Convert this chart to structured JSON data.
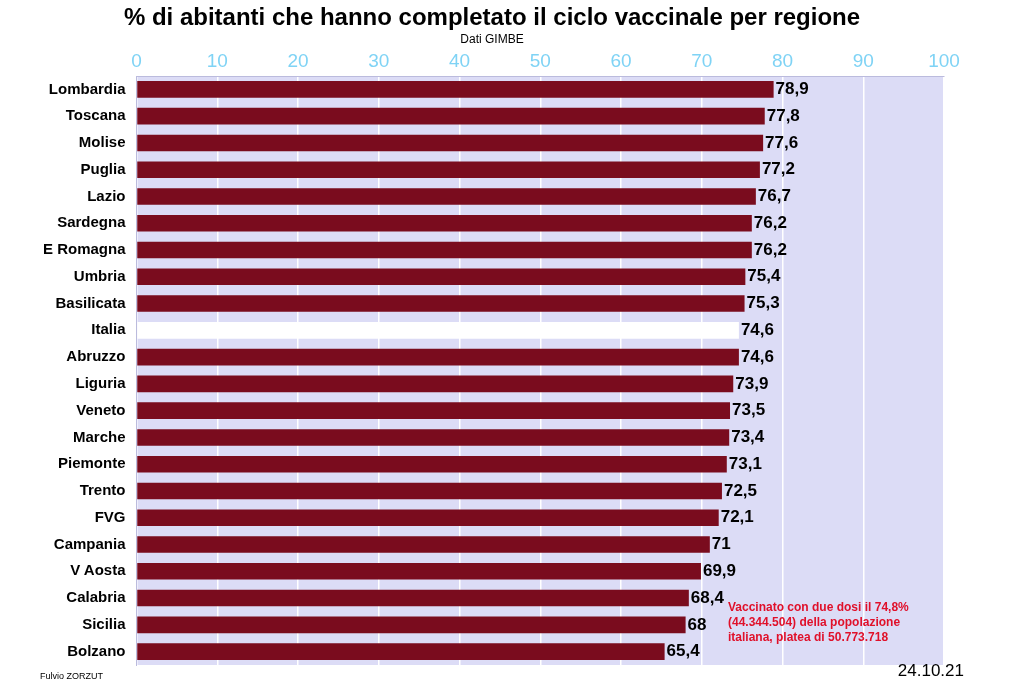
{
  "chart_data": {
    "type": "bar",
    "orientation": "horizontal",
    "title": "% di abitanti che hanno completato il ciclo vaccinale per regione",
    "subtitle": "Dati GIMBE",
    "categories": [
      "Lombardia",
      "Toscana",
      "Molise",
      "Puglia",
      "Lazio",
      "Sardegna",
      "E Romagna",
      "Umbria",
      "Basilicata",
      "Italia",
      "Abruzzo",
      "Liguria",
      "Veneto",
      "Marche",
      "Piemonte",
      "Trento",
      "FVG",
      "Campania",
      "V Aosta",
      "Calabria",
      "Sicilia",
      "Bolzano"
    ],
    "values": [
      78.9,
      77.8,
      77.6,
      77.2,
      76.7,
      76.2,
      76.2,
      75.4,
      75.3,
      74.6,
      74.6,
      73.9,
      73.5,
      73.4,
      73.1,
      72.5,
      72.1,
      71,
      69.9,
      68.4,
      68,
      65.4
    ],
    "value_labels": [
      "78,9",
      "77,8",
      "77,6",
      "77,2",
      "76,7",
      "76,2",
      "76,2",
      "75,4",
      "75,3",
      "74,6",
      "74,6",
      "73,9",
      "73,5",
      "73,4",
      "73,1",
      "72,5",
      "72,1",
      "71",
      "69,9",
      "68,4",
      "68",
      "65,4"
    ],
    "colors": [
      "#7a0c1e",
      "#7a0c1e",
      "#7a0c1e",
      "#7a0c1e",
      "#7a0c1e",
      "#7a0c1e",
      "#7a0c1e",
      "#7a0c1e",
      "#7a0c1e",
      "#ffffff",
      "#7a0c1e",
      "#7a0c1e",
      "#7a0c1e",
      "#7a0c1e",
      "#7a0c1e",
      "#7a0c1e",
      "#7a0c1e",
      "#7a0c1e",
      "#7a0c1e",
      "#7a0c1e",
      "#7a0c1e",
      "#7a0c1e"
    ],
    "xlim": [
      0,
      100
    ],
    "xticks": [
      0,
      10,
      20,
      30,
      40,
      50,
      60,
      70,
      80,
      90,
      100
    ],
    "grid": "x",
    "legend": false,
    "annotations": [
      "Vaccinato con due dosi il 74,8% (44.344.504) della popolazione italiana, platea di 50.773.718",
      "24.10.21",
      "Fulvio ZORZUT"
    ]
  }
}
